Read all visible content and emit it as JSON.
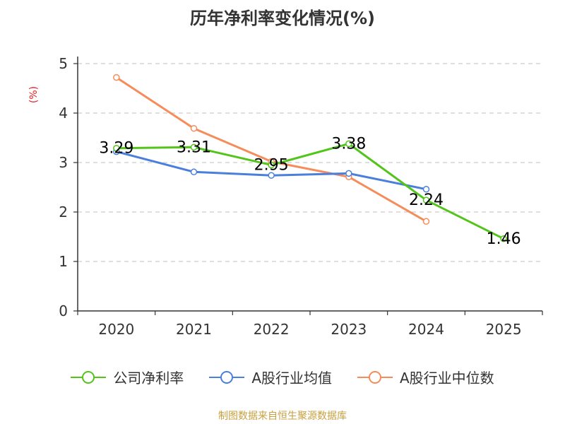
{
  "chart_data": {
    "type": "line",
    "title": "历年净利率变化情况(%)",
    "ylabel": "(%)",
    "xlabel": "",
    "categories": [
      "2020",
      "2021",
      "2022",
      "2023",
      "2024",
      "2025"
    ],
    "ylim": [
      0,
      5
    ],
    "yticks": [
      0,
      1,
      2,
      3,
      4,
      5
    ],
    "grid": true,
    "legend_position": "bottom",
    "series": [
      {
        "name": "公司净利率",
        "color": "#52c41a",
        "values": [
          3.29,
          3.31,
          2.95,
          3.38,
          2.24,
          1.46
        ],
        "labels": [
          "3.29",
          "3.31",
          "2.95",
          "3.38",
          "2.24",
          "1.46"
        ]
      },
      {
        "name": "A股行业均值",
        "color": "#4a7fdc",
        "values": [
          3.22,
          2.81,
          2.74,
          2.78,
          2.46,
          null
        ],
        "labels": []
      },
      {
        "name": "A股行业中位数",
        "color": "#f58c5a",
        "values": [
          4.72,
          3.69,
          3.02,
          2.71,
          1.81,
          null
        ],
        "labels": []
      }
    ],
    "source": "制图数据来自恒生聚源数据库"
  }
}
